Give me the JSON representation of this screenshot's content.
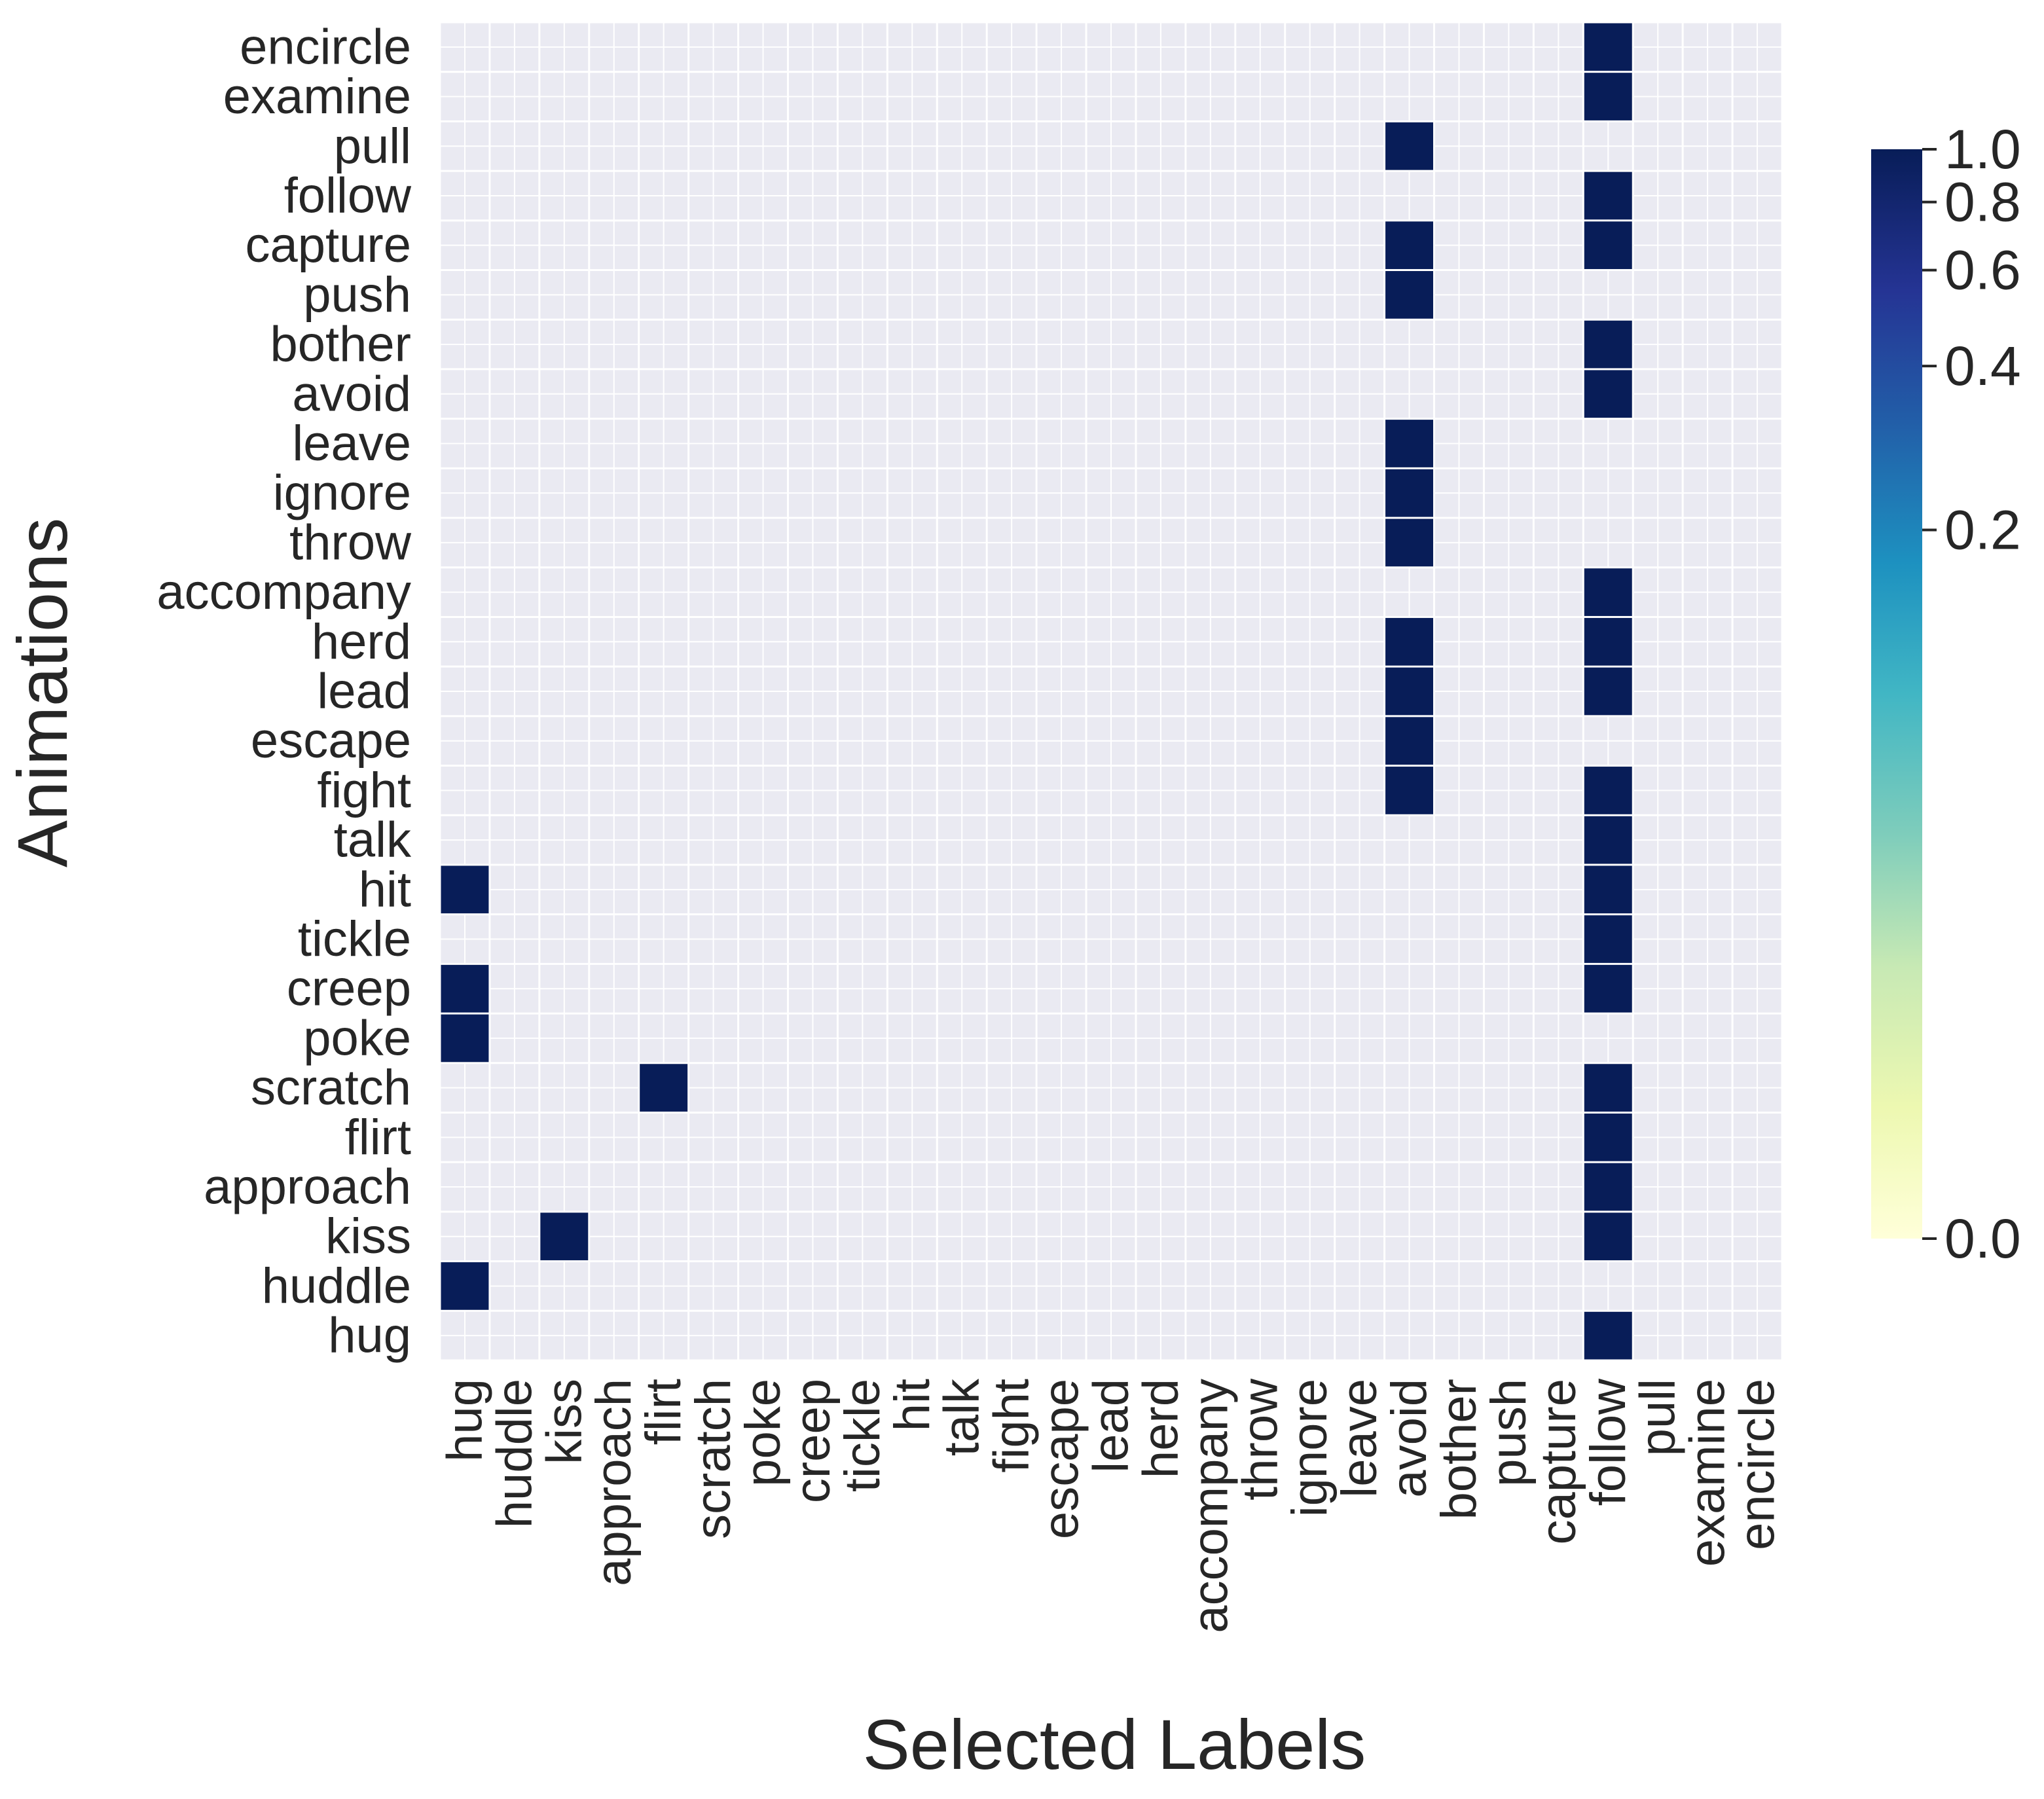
{
  "chart_data": {
    "type": "heatmap",
    "xlabel": "Selected Labels",
    "ylabel": "Animations",
    "x_categories": [
      "hug",
      "huddle",
      "kiss",
      "approach",
      "flirt",
      "scratch",
      "poke",
      "creep",
      "tickle",
      "hit",
      "talk",
      "fight",
      "escape",
      "lead",
      "herd",
      "accompany",
      "throw",
      "ignore",
      "leave",
      "avoid",
      "bother",
      "push",
      "capture",
      "follow",
      "pull",
      "examine",
      "encircle"
    ],
    "y_categories": [
      "encircle",
      "examine",
      "pull",
      "follow",
      "capture",
      "push",
      "bother",
      "avoid",
      "leave",
      "ignore",
      "throw",
      "accompany",
      "herd",
      "lead",
      "escape",
      "fight",
      "talk",
      "hit",
      "tickle",
      "creep",
      "poke",
      "scratch",
      "flirt",
      "approach",
      "kiss",
      "huddle",
      "hug"
    ],
    "cells": [
      {
        "row": "encircle",
        "col": "follow",
        "value": 1
      },
      {
        "row": "examine",
        "col": "follow",
        "value": 1
      },
      {
        "row": "pull",
        "col": "avoid",
        "value": 1
      },
      {
        "row": "follow",
        "col": "follow",
        "value": 1
      },
      {
        "row": "capture",
        "col": "avoid",
        "value": 1
      },
      {
        "row": "capture",
        "col": "follow",
        "value": 1
      },
      {
        "row": "push",
        "col": "avoid",
        "value": 1
      },
      {
        "row": "bother",
        "col": "follow",
        "value": 1
      },
      {
        "row": "avoid",
        "col": "follow",
        "value": 1
      },
      {
        "row": "leave",
        "col": "avoid",
        "value": 1
      },
      {
        "row": "ignore",
        "col": "avoid",
        "value": 1
      },
      {
        "row": "throw",
        "col": "avoid",
        "value": 1
      },
      {
        "row": "accompany",
        "col": "follow",
        "value": 1
      },
      {
        "row": "herd",
        "col": "avoid",
        "value": 1
      },
      {
        "row": "herd",
        "col": "follow",
        "value": 1
      },
      {
        "row": "lead",
        "col": "avoid",
        "value": 1
      },
      {
        "row": "lead",
        "col": "follow",
        "value": 1
      },
      {
        "row": "escape",
        "col": "avoid",
        "value": 1
      },
      {
        "row": "fight",
        "col": "avoid",
        "value": 1
      },
      {
        "row": "fight",
        "col": "follow",
        "value": 1
      },
      {
        "row": "talk",
        "col": "follow",
        "value": 1
      },
      {
        "row": "hit",
        "col": "hug",
        "value": 1
      },
      {
        "row": "hit",
        "col": "follow",
        "value": 1
      },
      {
        "row": "tickle",
        "col": "follow",
        "value": 1
      },
      {
        "row": "creep",
        "col": "hug",
        "value": 1
      },
      {
        "row": "creep",
        "col": "follow",
        "value": 1
      },
      {
        "row": "poke",
        "col": "hug",
        "value": 1
      },
      {
        "row": "scratch",
        "col": "flirt",
        "value": 1
      },
      {
        "row": "scratch",
        "col": "follow",
        "value": 1
      },
      {
        "row": "flirt",
        "col": "follow",
        "value": 1
      },
      {
        "row": "approach",
        "col": "follow",
        "value": 1
      },
      {
        "row": "kiss",
        "col": "kiss",
        "value": 1
      },
      {
        "row": "kiss",
        "col": "follow",
        "value": 1
      },
      {
        "row": "huddle",
        "col": "hug",
        "value": 1
      },
      {
        "row": "hug",
        "col": "follow",
        "value": 1
      }
    ],
    "colorbar": {
      "colormap": "YlGnBu",
      "vmin": 0.0,
      "vmax": 1.0,
      "ticks": [
        0.0,
        0.2,
        0.4,
        0.6,
        0.8,
        1.0
      ],
      "tick_labels": [
        "0.0",
        "0.2",
        "0.4",
        "0.6",
        "0.8",
        "1.0"
      ],
      "scale": "symlog"
    },
    "grid": true,
    "colors": {
      "background": "#eaeaf2",
      "grid": "#ffffff",
      "filled": "#081d58",
      "text": "#262626"
    }
  }
}
